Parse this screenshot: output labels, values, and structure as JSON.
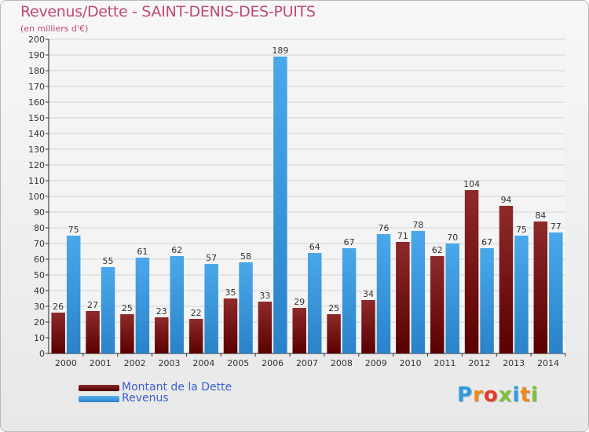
{
  "title": "Revenus/Dette - SAINT-DENIS-DES-PUITS",
  "subtitle": "(en milliers d'€)",
  "chart_data": {
    "type": "bar",
    "categories": [
      "2000",
      "2001",
      "2002",
      "2003",
      "2004",
      "2005",
      "2006",
      "2007",
      "2008",
      "2009",
      "2010",
      "2011",
      "2012",
      "2013",
      "2014"
    ],
    "series": [
      {
        "name": "Montant de la Dette",
        "color": "#7a1a1a",
        "values": [
          26,
          27,
          25,
          23,
          22,
          35,
          33,
          29,
          25,
          34,
          71,
          62,
          104,
          94,
          84
        ]
      },
      {
        "name": "Revenus",
        "color": "#3f9de0",
        "values": [
          75,
          55,
          61,
          62,
          57,
          58,
          189,
          64,
          67,
          76,
          78,
          70,
          67,
          75,
          77
        ]
      }
    ],
    "ylim": [
      0,
      200
    ],
    "ytick_step": 10,
    "yticks": [
      "0",
      "10",
      "20",
      "30",
      "40",
      "50",
      "60",
      "70",
      "80",
      "90",
      "100",
      "110",
      "120",
      "130",
      "140",
      "150",
      "160",
      "170",
      "180",
      "190",
      "200"
    ],
    "grid": true,
    "legend_position": "bottom-left"
  },
  "legend": {
    "items": [
      {
        "label": "Montant de la Dette",
        "color": "#6b0d0d"
      },
      {
        "label": "Revenus",
        "color": "#3f9de0"
      }
    ]
  },
  "logo": {
    "letters": [
      "P",
      "r",
      "o",
      "x",
      "i",
      "t",
      "i"
    ],
    "colors": [
      "#2d9be0",
      "#f08a1a",
      "#e33a2a",
      "#7cc23a",
      "#2d9be0",
      "#f08a1a",
      "#7cc23a"
    ]
  }
}
